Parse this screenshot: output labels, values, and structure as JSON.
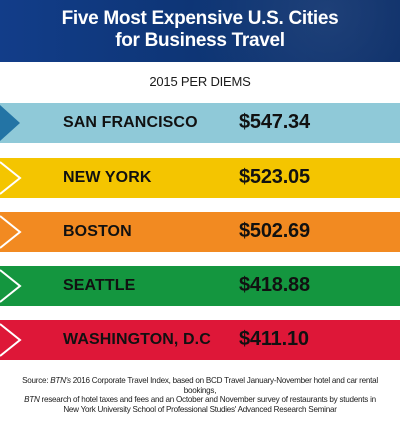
{
  "header": {
    "title": "Five Most Expensive U.S. Cities\nfor Business Travel"
  },
  "colors": {
    "header": "#0d3473",
    "marker_outline": "#ffffff",
    "first_marker": "#2374a5"
  },
  "chart_data": {
    "type": "bar",
    "title": "Five Most Expensive U.S. Cities for Business Travel",
    "subtitle": "2015 PER DIEMS",
    "categories": [
      "SAN FRANCISCO",
      "NEW YORK",
      "BOSTON",
      "SEATTLE",
      "WASHINGTON, D.C"
    ],
    "values": [
      547.34,
      523.05,
      502.69,
      418.88,
      411.1
    ],
    "value_labels": [
      "$547.34",
      "$523.05",
      "$502.69",
      "$418.88",
      "$411.10"
    ],
    "colors": [
      "#8fc9d8",
      "#f4c500",
      "#f28a21",
      "#14963f",
      "#de1738"
    ],
    "xlabel": "",
    "ylabel": "",
    "grid": false,
    "legend": "none"
  },
  "source": {
    "label": "Source:",
    "brand_1": "BTN's",
    "text_1": " 2016 Corporate Travel Index, based on BCD Travel January-November hotel and car rental bookings,",
    "brand_2": "BTN",
    "text_2": " research of hotel taxes and fees and an October and November survey of restaurants by students in",
    "text_3": "New York University School of Professional Studies' Advanced Research Seminar"
  }
}
